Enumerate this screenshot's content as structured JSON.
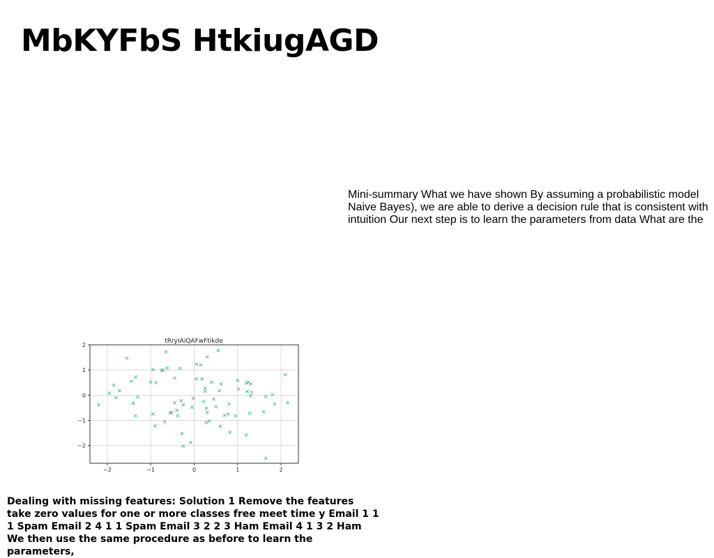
{
  "title": "MbKYFbS HtkiugAGD",
  "summary_text": "Mini-summary What we have shown By assuming a probabilistic model Naive Bayes), we are able to derive a decision rule that is consistent with intuition Our next step is to learn the parameters from data What are the",
  "bottom_text": "Dealing with missing features: Solution 1 Remove the features take zero values for one or more classes free meet time y Email 1 1 1 Spam Email 2 4 1 1 Spam Email 3 2 2 3 Ham Email 4 1 3 2 Ham We then use the same procedure as before to learn the parameters,",
  "colors": {
    "marker": "#5fb89a",
    "grid": "#d9d9d9",
    "axis": "#333333"
  },
  "chart_data": {
    "type": "scatter",
    "title": "tRryIAiQAFwFtikde",
    "xlabel": "",
    "ylabel": "",
    "xlim": [
      -2.4,
      2.4
    ],
    "ylim": [
      -2.7,
      2.0
    ],
    "xticks": [
      -2,
      -1,
      0,
      1,
      2
    ],
    "yticks": [
      2,
      1,
      0,
      -1,
      -2
    ],
    "xtick_labels": [
      "−2",
      "−1",
      "0",
      "1",
      "2"
    ],
    "ytick_labels": [
      "2",
      "1",
      "0",
      "−1",
      "−2"
    ],
    "grid": true,
    "marker": "x",
    "points": [
      [
        -2.2,
        -0.38
      ],
      [
        -1.95,
        0.08
      ],
      [
        -1.85,
        0.4
      ],
      [
        -1.8,
        -0.1
      ],
      [
        -1.72,
        0.18
      ],
      [
        -1.55,
        1.47
      ],
      [
        -1.45,
        0.55
      ],
      [
        -1.4,
        -0.32
      ],
      [
        -1.35,
        0.72
      ],
      [
        -1.35,
        -0.82
      ],
      [
        -1.3,
        -0.07
      ],
      [
        -1.0,
        0.52
      ],
      [
        -0.95,
        1.02
      ],
      [
        -0.95,
        -0.75
      ],
      [
        -0.9,
        -1.22
      ],
      [
        -0.88,
        0.5
      ],
      [
        -0.75,
        0.98
      ],
      [
        -0.72,
        1.0
      ],
      [
        -0.68,
        -1.05
      ],
      [
        -0.65,
        1.72
      ],
      [
        -0.62,
        1.08
      ],
      [
        -0.55,
        -0.7
      ],
      [
        -0.52,
        -0.68
      ],
      [
        -0.45,
        0.68
      ],
      [
        -0.45,
        -0.3
      ],
      [
        -0.4,
        -0.6
      ],
      [
        -0.38,
        -0.82
      ],
      [
        -0.32,
        1.07
      ],
      [
        -0.3,
        -0.22
      ],
      [
        -0.28,
        -1.52
      ],
      [
        -0.25,
        -2.02
      ],
      [
        -0.25,
        -0.38
      ],
      [
        -0.08,
        -1.88
      ],
      [
        -0.05,
        -0.48
      ],
      [
        -0.02,
        -0.12
      ],
      [
        0.05,
        1.23
      ],
      [
        0.05,
        0.65
      ],
      [
        0.15,
        1.2
      ],
      [
        0.18,
        0.65
      ],
      [
        0.22,
        -0.25
      ],
      [
        0.25,
        0.15
      ],
      [
        0.25,
        0.28
      ],
      [
        0.28,
        -1.08
      ],
      [
        0.28,
        -0.52
      ],
      [
        0.3,
        1.52
      ],
      [
        0.3,
        -0.68
      ],
      [
        0.35,
        -1.03
      ],
      [
        0.4,
        0.52
      ],
      [
        0.45,
        -0.15
      ],
      [
        0.5,
        -0.45
      ],
      [
        0.55,
        1.78
      ],
      [
        0.58,
        0.18
      ],
      [
        0.6,
        -1.23
      ],
      [
        0.62,
        0.45
      ],
      [
        0.7,
        -0.8
      ],
      [
        0.78,
        -0.75
      ],
      [
        0.8,
        -0.35
      ],
      [
        0.82,
        -1.47
      ],
      [
        0.95,
        -0.82
      ],
      [
        1.0,
        0.58
      ],
      [
        1.02,
        0.25
      ],
      [
        1.2,
        -1.58
      ],
      [
        1.2,
        0.48
      ],
      [
        1.22,
        0.15
      ],
      [
        1.25,
        0.52
      ],
      [
        1.28,
        -0.72
      ],
      [
        1.3,
        -0.02
      ],
      [
        1.3,
        0.45
      ],
      [
        1.32,
        0.12
      ],
      [
        1.6,
        -0.65
      ],
      [
        1.65,
        -0.05
      ],
      [
        1.65,
        -2.5
      ],
      [
        1.8,
        0.02
      ],
      [
        1.85,
        -0.35
      ],
      [
        2.1,
        0.82
      ],
      [
        2.15,
        -0.3
      ]
    ]
  }
}
